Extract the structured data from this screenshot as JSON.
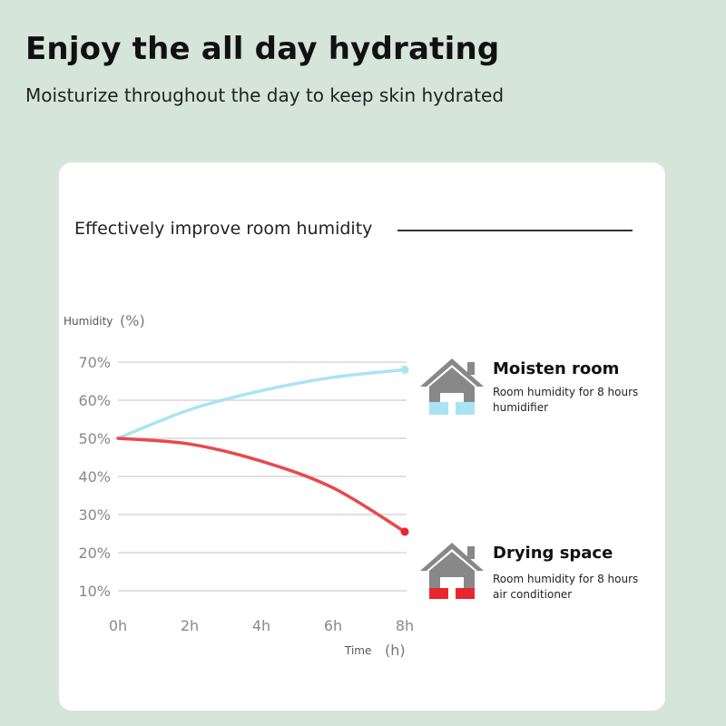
{
  "header": {
    "title": "Enjoy the all day hydrating",
    "subtitle": "Moisturize throughout the day to keep skin hydrated"
  },
  "card": {
    "title": "Effectively improve room humidity"
  },
  "legend": [
    {
      "name": "Moisten room",
      "line1": "Room humidity for 8 hours",
      "line2": "humidifier",
      "icon": "house-icon",
      "color": "#a8e4f4"
    },
    {
      "name": "Drying space",
      "line1": "Room humidity for 8 hours",
      "line2": "air conditioner",
      "icon": "house-icon",
      "color": "#e8262e"
    }
  ],
  "chart_data": {
    "type": "line",
    "ylabel": "Humidity",
    "ylabel_unit": "(%)",
    "xlabel": "Time",
    "xlabel_unit": "(h)",
    "x": [
      0,
      2,
      4,
      6,
      8
    ],
    "x_tick_labels": [
      "0h",
      "2h",
      "4h",
      "6h",
      "8h"
    ],
    "y_tick_labels": [
      "10%",
      "20%",
      "30%",
      "40%",
      "50%",
      "60%",
      "70%"
    ],
    "y_ticks": [
      10,
      20,
      30,
      40,
      50,
      60,
      70
    ],
    "ylim": [
      10,
      70
    ],
    "xlim": [
      0,
      8
    ],
    "grid": true,
    "series": [
      {
        "name": "Moisten room",
        "color": "#a8e4f4",
        "values": [
          50,
          57.5,
          62.5,
          66,
          68
        ]
      },
      {
        "name": "Drying space",
        "color": "#e8484e",
        "values": [
          50,
          48.5,
          44,
          37,
          25.5
        ]
      }
    ]
  }
}
